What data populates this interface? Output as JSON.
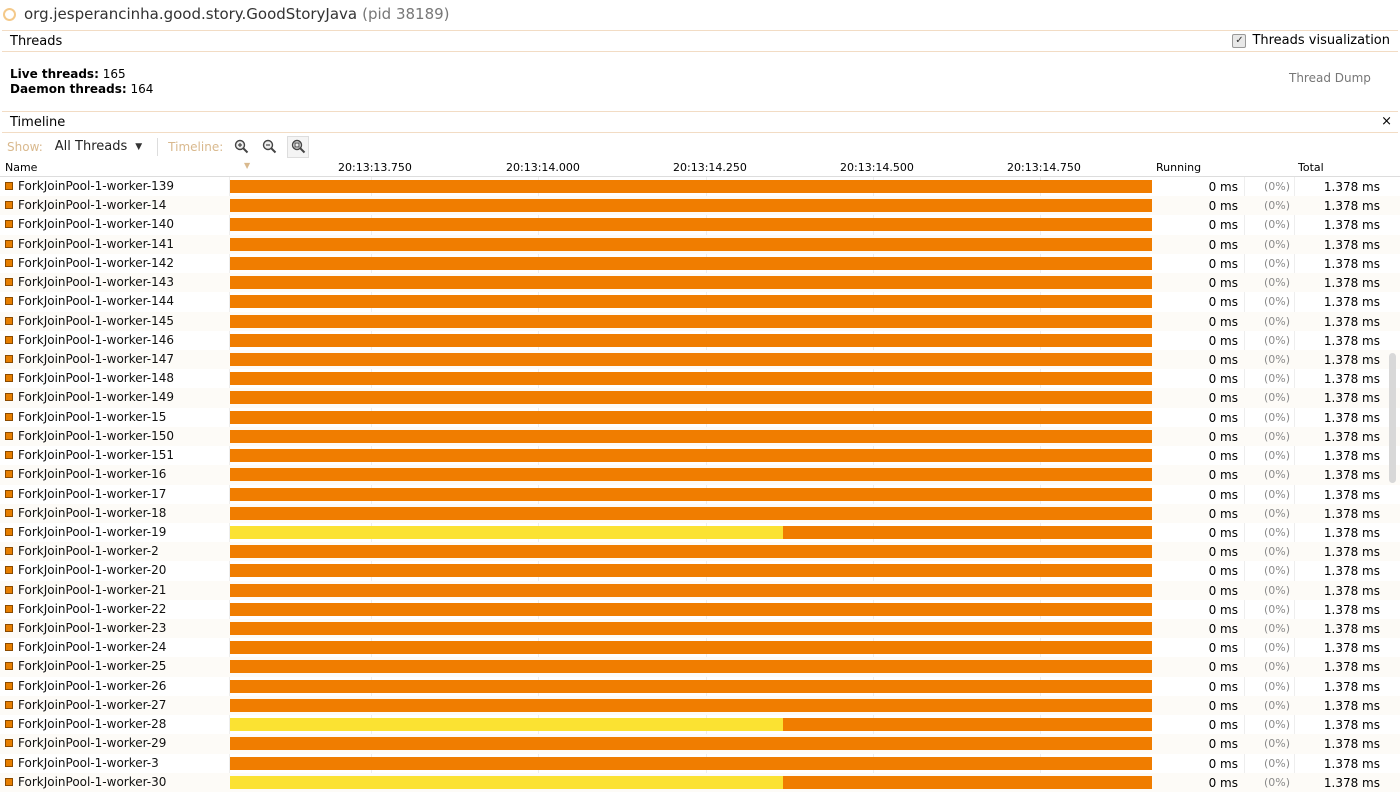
{
  "window": {
    "title": "org.jesperancinha.good.story.GoodStoryJava",
    "pid": "(pid 38189)"
  },
  "threads_section": {
    "title": "Threads",
    "visualization_label": "Threads visualization",
    "visualization_checked": true
  },
  "stats": {
    "live_label": "Live threads:",
    "live_value": "165",
    "daemon_label": "Daemon threads:",
    "daemon_value": "164"
  },
  "thread_dump_label": "Thread Dump",
  "timeline_section": {
    "title": "Timeline",
    "close": "×"
  },
  "toolbar": {
    "show_label": "Show:",
    "show_value": "All Threads",
    "timeline_label": "Timeline:"
  },
  "columns": {
    "name": "Name",
    "time_ticks": [
      "20:13:13.750",
      "20:13:14.000",
      "20:13:14.250",
      "20:13:14.500",
      "20:13:14.750"
    ],
    "running": "Running",
    "total": "Total"
  },
  "colors": {
    "waiting": "#f07d00",
    "running_state": "#fbe232"
  },
  "threads": [
    {
      "name": "ForkJoinPool-1-worker-139",
      "running": "0 ms",
      "pct": "(0%)",
      "total": "1.378 ms",
      "yellow_fraction": 0
    },
    {
      "name": "ForkJoinPool-1-worker-14",
      "running": "0 ms",
      "pct": "(0%)",
      "total": "1.378 ms",
      "yellow_fraction": 0
    },
    {
      "name": "ForkJoinPool-1-worker-140",
      "running": "0 ms",
      "pct": "(0%)",
      "total": "1.378 ms",
      "yellow_fraction": 0
    },
    {
      "name": "ForkJoinPool-1-worker-141",
      "running": "0 ms",
      "pct": "(0%)",
      "total": "1.378 ms",
      "yellow_fraction": 0
    },
    {
      "name": "ForkJoinPool-1-worker-142",
      "running": "0 ms",
      "pct": "(0%)",
      "total": "1.378 ms",
      "yellow_fraction": 0
    },
    {
      "name": "ForkJoinPool-1-worker-143",
      "running": "0 ms",
      "pct": "(0%)",
      "total": "1.378 ms",
      "yellow_fraction": 0
    },
    {
      "name": "ForkJoinPool-1-worker-144",
      "running": "0 ms",
      "pct": "(0%)",
      "total": "1.378 ms",
      "yellow_fraction": 0
    },
    {
      "name": "ForkJoinPool-1-worker-145",
      "running": "0 ms",
      "pct": "(0%)",
      "total": "1.378 ms",
      "yellow_fraction": 0
    },
    {
      "name": "ForkJoinPool-1-worker-146",
      "running": "0 ms",
      "pct": "(0%)",
      "total": "1.378 ms",
      "yellow_fraction": 0
    },
    {
      "name": "ForkJoinPool-1-worker-147",
      "running": "0 ms",
      "pct": "(0%)",
      "total": "1.378 ms",
      "yellow_fraction": 0
    },
    {
      "name": "ForkJoinPool-1-worker-148",
      "running": "0 ms",
      "pct": "(0%)",
      "total": "1.378 ms",
      "yellow_fraction": 0
    },
    {
      "name": "ForkJoinPool-1-worker-149",
      "running": "0 ms",
      "pct": "(0%)",
      "total": "1.378 ms",
      "yellow_fraction": 0
    },
    {
      "name": "ForkJoinPool-1-worker-15",
      "running": "0 ms",
      "pct": "(0%)",
      "total": "1.378 ms",
      "yellow_fraction": 0
    },
    {
      "name": "ForkJoinPool-1-worker-150",
      "running": "0 ms",
      "pct": "(0%)",
      "total": "1.378 ms",
      "yellow_fraction": 0
    },
    {
      "name": "ForkJoinPool-1-worker-151",
      "running": "0 ms",
      "pct": "(0%)",
      "total": "1.378 ms",
      "yellow_fraction": 0
    },
    {
      "name": "ForkJoinPool-1-worker-16",
      "running": "0 ms",
      "pct": "(0%)",
      "total": "1.378 ms",
      "yellow_fraction": 0
    },
    {
      "name": "ForkJoinPool-1-worker-17",
      "running": "0 ms",
      "pct": "(0%)",
      "total": "1.378 ms",
      "yellow_fraction": 0
    },
    {
      "name": "ForkJoinPool-1-worker-18",
      "running": "0 ms",
      "pct": "(0%)",
      "total": "1.378 ms",
      "yellow_fraction": 0
    },
    {
      "name": "ForkJoinPool-1-worker-19",
      "running": "0 ms",
      "pct": "(0%)",
      "total": "1.378 ms",
      "yellow_fraction": 0.6
    },
    {
      "name": "ForkJoinPool-1-worker-2",
      "running": "0 ms",
      "pct": "(0%)",
      "total": "1.378 ms",
      "yellow_fraction": 0
    },
    {
      "name": "ForkJoinPool-1-worker-20",
      "running": "0 ms",
      "pct": "(0%)",
      "total": "1.378 ms",
      "yellow_fraction": 0
    },
    {
      "name": "ForkJoinPool-1-worker-21",
      "running": "0 ms",
      "pct": "(0%)",
      "total": "1.378 ms",
      "yellow_fraction": 0
    },
    {
      "name": "ForkJoinPool-1-worker-22",
      "running": "0 ms",
      "pct": "(0%)",
      "total": "1.378 ms",
      "yellow_fraction": 0
    },
    {
      "name": "ForkJoinPool-1-worker-23",
      "running": "0 ms",
      "pct": "(0%)",
      "total": "1.378 ms",
      "yellow_fraction": 0
    },
    {
      "name": "ForkJoinPool-1-worker-24",
      "running": "0 ms",
      "pct": "(0%)",
      "total": "1.378 ms",
      "yellow_fraction": 0
    },
    {
      "name": "ForkJoinPool-1-worker-25",
      "running": "0 ms",
      "pct": "(0%)",
      "total": "1.378 ms",
      "yellow_fraction": 0
    },
    {
      "name": "ForkJoinPool-1-worker-26",
      "running": "0 ms",
      "pct": "(0%)",
      "total": "1.378 ms",
      "yellow_fraction": 0
    },
    {
      "name": "ForkJoinPool-1-worker-27",
      "running": "0 ms",
      "pct": "(0%)",
      "total": "1.378 ms",
      "yellow_fraction": 0
    },
    {
      "name": "ForkJoinPool-1-worker-28",
      "running": "0 ms",
      "pct": "(0%)",
      "total": "1.378 ms",
      "yellow_fraction": 0.6
    },
    {
      "name": "ForkJoinPool-1-worker-29",
      "running": "0 ms",
      "pct": "(0%)",
      "total": "1.378 ms",
      "yellow_fraction": 0
    },
    {
      "name": "ForkJoinPool-1-worker-3",
      "running": "0 ms",
      "pct": "(0%)",
      "total": "1.378 ms",
      "yellow_fraction": 0
    },
    {
      "name": "ForkJoinPool-1-worker-30",
      "running": "0 ms",
      "pct": "(0%)",
      "total": "1.378 ms",
      "yellow_fraction": 0.6
    }
  ]
}
